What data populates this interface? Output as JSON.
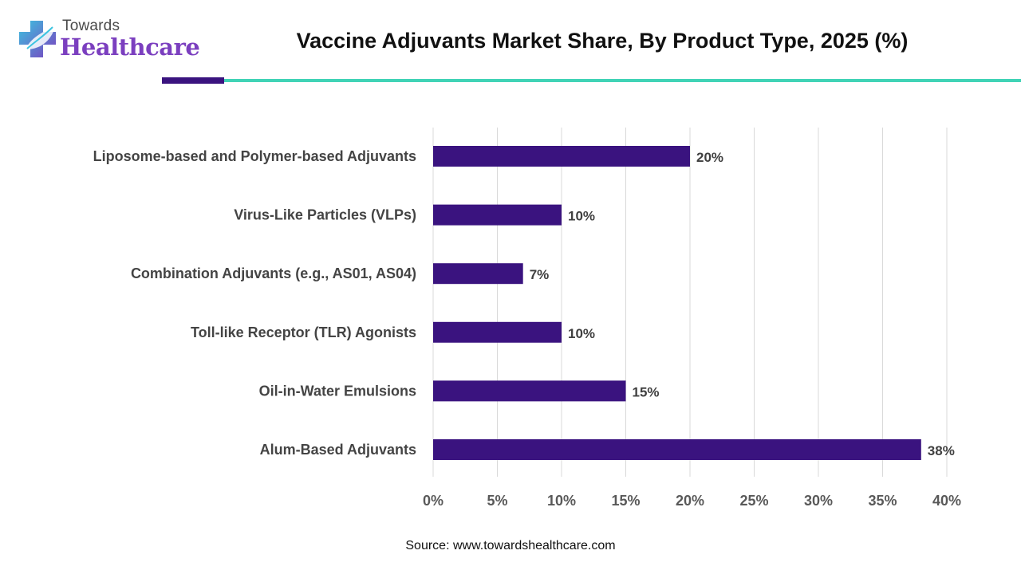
{
  "header": {
    "logo_top": "Towards",
    "logo_main": "Healthcare",
    "title": "Vaccine Adjuvants Market Share, By Product Type, 2025 (%)"
  },
  "colors": {
    "bar": "#3a137f",
    "accent_purple": "#3a137f",
    "accent_teal": "#41d3b6",
    "grid": "#d9d9d9"
  },
  "chart_data": {
    "type": "bar",
    "orientation": "horizontal",
    "categories": [
      "Liposome-based and Polymer-based Adjuvants",
      "Virus-Like Particles (VLPs)",
      "Combination Adjuvants (e.g., AS01, AS04)",
      "Toll-like Receptor (TLR) Agonists",
      "Oil-in-Water Emulsions",
      "Alum-Based Adjuvants"
    ],
    "values": [
      20,
      10,
      7,
      10,
      15,
      38
    ],
    "data_labels": [
      "20%",
      "10%",
      "7%",
      "10%",
      "15%",
      "38%"
    ],
    "xlim": [
      0,
      40
    ],
    "xticks": [
      0,
      5,
      10,
      15,
      20,
      25,
      30,
      35,
      40
    ],
    "xtick_labels": [
      "0%",
      "5%",
      "10%",
      "15%",
      "20%",
      "25%",
      "30%",
      "35%",
      "40%"
    ],
    "grid": "vertical"
  },
  "footer": {
    "source": "Source: www.towardshealthcare.com"
  }
}
